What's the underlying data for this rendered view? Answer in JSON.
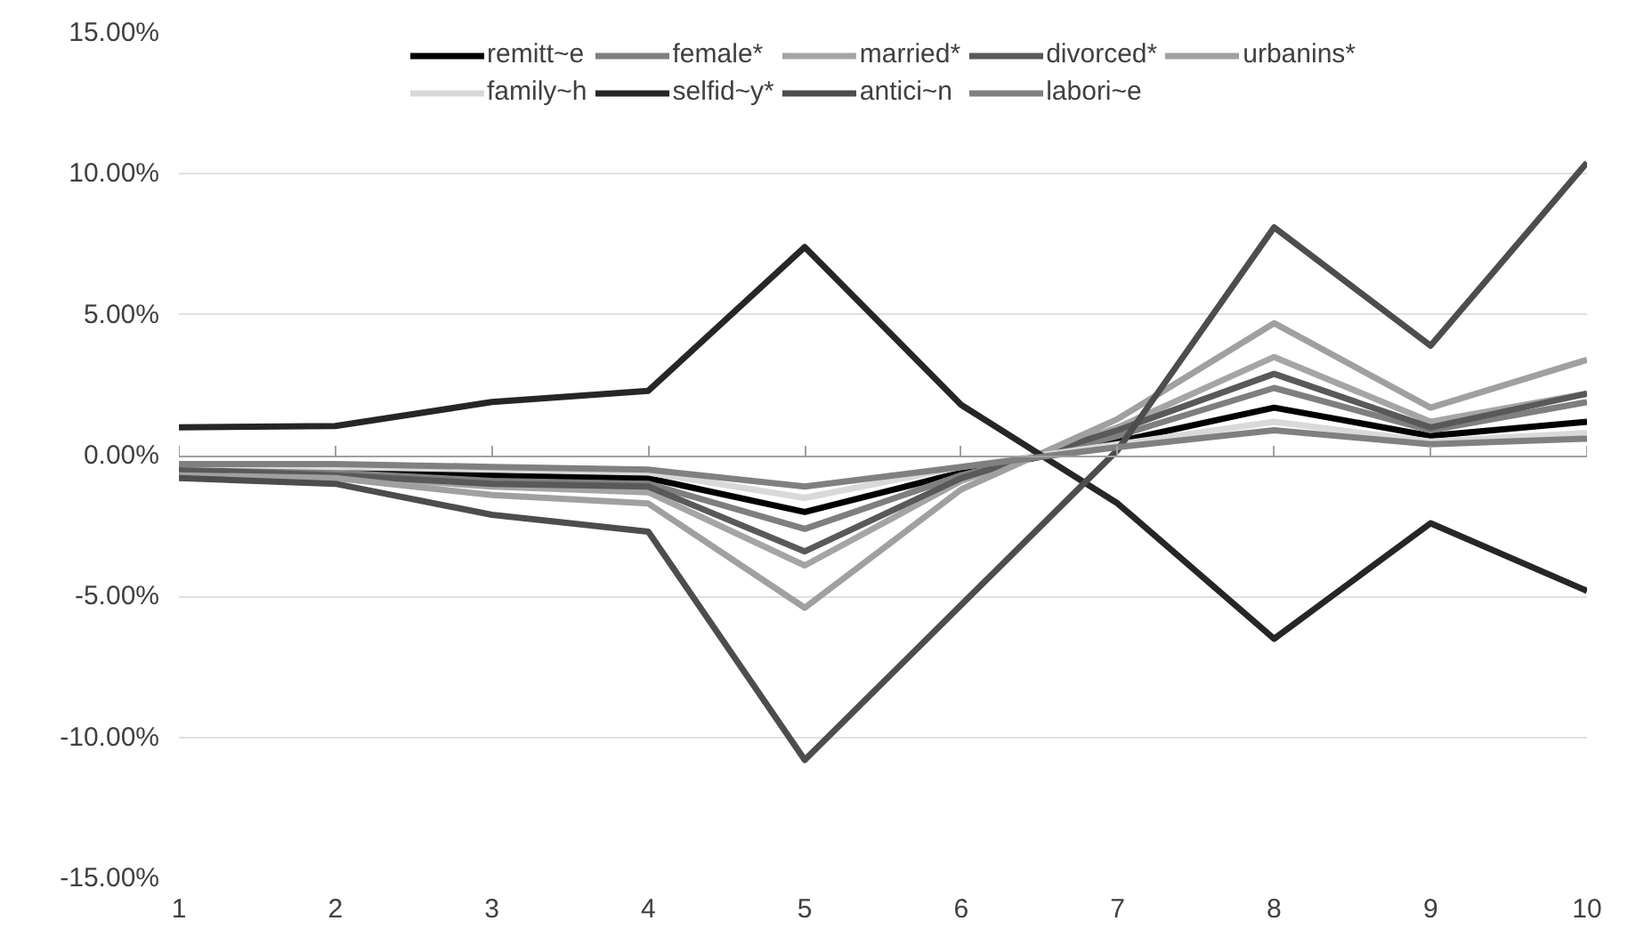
{
  "chart_data": {
    "type": "line",
    "x": [
      1,
      2,
      3,
      4,
      5,
      6,
      7,
      8,
      9,
      10
    ],
    "xlim": [
      1,
      10
    ],
    "xticks": [
      1,
      2,
      3,
      4,
      5,
      6,
      7,
      8,
      9,
      10
    ],
    "ylim": [
      -15,
      15
    ],
    "yticks": [
      {
        "value": -15,
        "label": "-15.00%"
      },
      {
        "value": -10,
        "label": "-10.00%"
      },
      {
        "value": -5,
        "label": "-5.00%"
      },
      {
        "value": 0,
        "label": "0.00%"
      },
      {
        "value": 5,
        "label": "5.00%"
      },
      {
        "value": 10,
        "label": "10.00%"
      },
      {
        "value": 15,
        "label": "15.00%"
      }
    ],
    "grid": "y",
    "legend": "top",
    "marker": "none",
    "line_style": "solid",
    "series": [
      {
        "name": "remitt~e",
        "color": "#000000",
        "values": [
          -0.4,
          -0.5,
          -0.7,
          -0.8,
          -2.0,
          -0.6,
          0.5,
          1.7,
          0.7,
          1.2
        ]
      },
      {
        "name": "female*",
        "color": "#7f7f7f",
        "values": [
          -0.5,
          -0.6,
          -0.9,
          -1.0,
          -2.6,
          -0.7,
          0.7,
          2.4,
          0.9,
          1.9
        ]
      },
      {
        "name": "married*",
        "color": "#a5a5a5",
        "values": [
          -0.6,
          -0.7,
          -1.1,
          -1.3,
          -3.9,
          -0.9,
          1.0,
          3.5,
          1.2,
          2.2
        ]
      },
      {
        "name": "divorced*",
        "color": "#595959",
        "values": [
          -0.5,
          -0.7,
          -1.0,
          -1.1,
          -3.4,
          -0.8,
          0.9,
          2.9,
          1.0,
          2.2
        ]
      },
      {
        "name": "urbanins*",
        "color": "#a0a0a0",
        "values": [
          -0.7,
          -0.8,
          -1.4,
          -1.7,
          -5.4,
          -1.2,
          1.3,
          4.7,
          1.7,
          3.4
        ]
      },
      {
        "name": "family~h",
        "color": "#d9d9d9",
        "values": [
          -0.3,
          -0.4,
          -0.5,
          -0.6,
          -1.5,
          -0.4,
          0.4,
          1.2,
          0.5,
          0.8
        ]
      },
      {
        "name": "selfid~y*",
        "color": "#262626",
        "values": [
          1.0,
          1.05,
          1.9,
          2.3,
          7.4,
          1.8,
          -1.7,
          -6.5,
          -2.4,
          -4.8
        ]
      },
      {
        "name": "antici~n",
        "color": "#4d4d4d",
        "values": [
          -0.8,
          -1.0,
          -2.1,
          -2.7,
          -10.8,
          -5.3,
          0.2,
          8.1,
          3.9,
          10.4
        ]
      },
      {
        "name": "labori~e",
        "color": "#808080",
        "values": [
          -0.3,
          -0.3,
          -0.4,
          -0.5,
          -1.1,
          -0.4,
          0.3,
          0.9,
          0.4,
          0.6
        ]
      }
    ]
  }
}
